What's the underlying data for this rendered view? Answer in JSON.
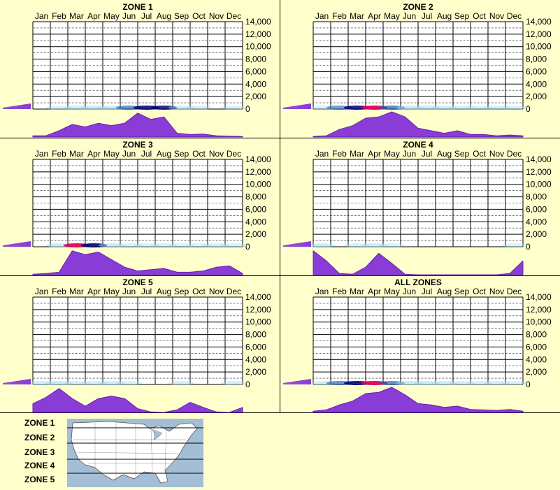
{
  "colors": {
    "background": "#ffffcc",
    "grid": "#000000",
    "density_fill": "#8a3cd6",
    "density_stroke": "#6a1fb0",
    "heat_low": "#9fdcf0",
    "heat_mid": "#1a5fb4",
    "heat_high": "#00007a",
    "heat_peak": "#e0005a",
    "map_water": "#a4bed6",
    "map_land": "#ffffff"
  },
  "chart_data": [
    {
      "type": "heatmap",
      "title": "ZONE 1",
      "categories": [
        "Jan",
        "Feb",
        "Mar",
        "Apr",
        "May",
        "Jun",
        "Jul",
        "Aug",
        "Sep",
        "Oct",
        "Nov",
        "Dec"
      ],
      "y_ticks": [
        "14,000",
        "12,000",
        "10,000",
        "8,000",
        "6,000",
        "4,000",
        "2,000",
        "0"
      ],
      "ylim": [
        0,
        14000
      ],
      "heat_intensity": [
        0.0,
        0.05,
        0.2,
        0.3,
        0.3,
        0.5,
        0.85,
        0.8,
        0.2,
        0.05,
        0.0,
        0.05
      ],
      "seasonal_density": [
        0.05,
        0.05,
        0.25,
        0.5,
        0.4,
        0.55,
        0.45,
        0.55,
        0.95,
        0.7,
        0.8,
        0.15,
        0.1,
        0.12,
        0.05,
        0.03,
        0.02
      ],
      "side_density": 0.4
    },
    {
      "type": "heatmap",
      "title": "ZONE 2",
      "categories": [
        "Jan",
        "Feb",
        "Mar",
        "Apr",
        "May",
        "Jun",
        "Jul",
        "Aug",
        "Sep",
        "Oct",
        "Nov",
        "Dec"
      ],
      "y_ticks": [
        "14,000",
        "12,000",
        "10,000",
        "8,000",
        "6,000",
        "4,000",
        "2,000",
        "0"
      ],
      "ylim": [
        0,
        14000
      ],
      "heat_intensity": [
        0.05,
        0.4,
        0.85,
        1.0,
        0.6,
        0.3,
        0.25,
        0.2,
        0.1,
        0.05,
        0.1,
        0.05
      ],
      "seasonal_density": [
        0.02,
        0.05,
        0.3,
        0.45,
        0.75,
        0.8,
        1.0,
        0.8,
        0.35,
        0.25,
        0.15,
        0.25,
        0.1,
        0.1,
        0.05,
        0.08,
        0.05
      ],
      "side_density": 0.4
    },
    {
      "type": "heatmap",
      "title": "ZONE 3",
      "categories": [
        "Jan",
        "Feb",
        "Mar",
        "Apr",
        "May",
        "Jun",
        "Jul",
        "Aug",
        "Sep",
        "Oct",
        "Nov",
        "Dec"
      ],
      "y_ticks": [
        "14,000",
        "12,000",
        "10,000",
        "8,000",
        "6,000",
        "4,000",
        "2,000",
        "0"
      ],
      "ylim": [
        0,
        14000
      ],
      "heat_intensity": [
        0.0,
        0.3,
        0.95,
        0.9,
        0.3,
        0.1,
        0.15,
        0.1,
        0.05,
        0.05,
        0.2,
        0.1
      ],
      "seasonal_density": [
        0.02,
        0.05,
        0.1,
        0.95,
        0.8,
        0.9,
        0.6,
        0.3,
        0.15,
        0.2,
        0.25,
        0.1,
        0.1,
        0.15,
        0.3,
        0.35,
        0.05
      ],
      "side_density": 0.4
    },
    {
      "type": "heatmap",
      "title": "ZONE 4",
      "categories": [
        "Jan",
        "Feb",
        "Mar",
        "Apr",
        "May",
        "Jun",
        "Jul",
        "Aug",
        "Sep",
        "Oct",
        "Nov",
        "Dec"
      ],
      "y_ticks": [
        "14,000",
        "12,000",
        "10,000",
        "8,000",
        "6,000",
        "4,000",
        "2,000",
        "0"
      ],
      "ylim": [
        0,
        14000
      ],
      "heat_intensity": [
        0.3,
        0.0,
        0.1,
        0.2,
        0.05,
        0.0,
        0.0,
        0.0,
        0.0,
        0.0,
        0.0,
        0.05
      ],
      "seasonal_density": [
        0.95,
        0.55,
        0.05,
        0.02,
        0.3,
        0.85,
        0.45,
        0.02,
        0.0,
        0.0,
        0.0,
        0.0,
        0.0,
        0.0,
        0.0,
        0.05,
        0.55
      ],
      "side_density": 0.4
    },
    {
      "type": "heatmap",
      "title": "ZONE 5",
      "categories": [
        "Jan",
        "Feb",
        "Mar",
        "Apr",
        "May",
        "Jun",
        "Jul",
        "Aug",
        "Sep",
        "Oct",
        "Nov",
        "Dec"
      ],
      "y_ticks": [
        "14,000",
        "12,000",
        "10,000",
        "8,000",
        "6,000",
        "4,000",
        "2,000",
        "0"
      ],
      "ylim": [
        0,
        14000
      ],
      "heat_intensity": [
        0.2,
        0.3,
        0.1,
        0.15,
        0.2,
        0.05,
        0.0,
        0.0,
        0.1,
        0.0,
        0.0,
        0.1
      ],
      "seasonal_density": [
        0.35,
        0.6,
        0.95,
        0.55,
        0.25,
        0.55,
        0.65,
        0.55,
        0.15,
        0.02,
        0.0,
        0.1,
        0.4,
        0.2,
        0.02,
        0.0,
        0.2
      ],
      "side_density": 0.4
    },
    {
      "type": "heatmap",
      "title": "ALL ZONES",
      "categories": [
        "Jan",
        "Feb",
        "Mar",
        "Apr",
        "May",
        "Jun",
        "Jul",
        "Aug",
        "Sep",
        "Oct",
        "Nov",
        "Dec"
      ],
      "y_ticks": [
        "14,000",
        "12,000",
        "10,000",
        "8,000",
        "6,000",
        "4,000",
        "2,000",
        "0"
      ],
      "ylim": [
        0,
        14000
      ],
      "heat_intensity": [
        0.1,
        0.5,
        0.9,
        1.0,
        0.55,
        0.35,
        0.3,
        0.25,
        0.15,
        0.1,
        0.15,
        0.05
      ],
      "seasonal_density": [
        0.05,
        0.1,
        0.3,
        0.45,
        0.75,
        0.8,
        1.0,
        0.7,
        0.35,
        0.3,
        0.2,
        0.25,
        0.12,
        0.1,
        0.08,
        0.12,
        0.05
      ],
      "side_density": 0.4
    }
  ],
  "legend": {
    "items": [
      "ZONE 1",
      "ZONE 2",
      "ZONE 3",
      "ZONE 4",
      "ZONE 5"
    ],
    "map_icon": "us-map-zones"
  }
}
